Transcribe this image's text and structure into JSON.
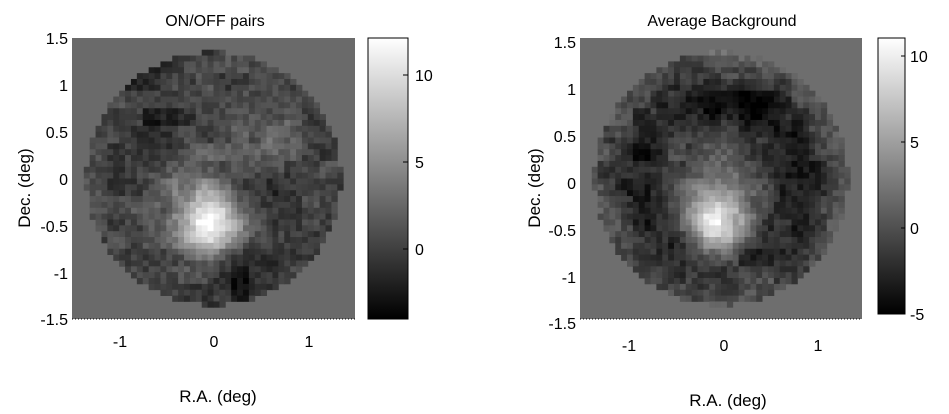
{
  "chart_data": [
    {
      "type": "heatmap",
      "title": "ON/OFF pairs",
      "xlabel": "R.A. (deg)",
      "ylabel": "Dec. (deg)",
      "xlim": [
        -1.5,
        1.5
      ],
      "ylim": [
        -1.5,
        1.5
      ],
      "xticks": [
        -1,
        0,
        1
      ],
      "yticks": [
        1.5,
        1,
        0.5,
        0,
        -0.5,
        -1,
        -1.5
      ],
      "colorbar": {
        "ticks": [
          10,
          5,
          0
        ],
        "range": [
          -4,
          12
        ],
        "colormap": "gray"
      },
      "field_radius_deg": 1.35,
      "background_level": 0.3,
      "features": [
        {
          "label": "peak",
          "x": -0.05,
          "y": -0.48,
          "value": 11.5
        },
        {
          "label": "hot",
          "x": -0.3,
          "y": 0.1,
          "value": 3.0
        },
        {
          "label": "hot",
          "x": 0.6,
          "y": 0.4,
          "value": 2.0
        },
        {
          "label": "cold",
          "x": -0.55,
          "y": 0.35,
          "value": -3.0
        },
        {
          "label": "cold",
          "x": -0.7,
          "y": 1.25,
          "value": -2.5
        },
        {
          "label": "cold",
          "x": 0.3,
          "y": -1.05,
          "value": -3.0
        },
        {
          "label": "cold",
          "x": 0.5,
          "y": -0.1,
          "value": -1.5
        }
      ]
    },
    {
      "type": "heatmap",
      "title": "Average Background",
      "xlabel": "R.A. (deg)",
      "ylabel": "Dec. (deg)",
      "xlim": [
        -1.5,
        1.5
      ],
      "ylim": [
        -1.5,
        1.5
      ],
      "xticks": [
        -1,
        0,
        1
      ],
      "yticks": [
        1.5,
        1,
        0.5,
        0,
        -0.5,
        -1,
        -1.5
      ],
      "colorbar": {
        "ticks": [
          10,
          5,
          0,
          -5
        ],
        "range": [
          -5,
          11
        ],
        "colormap": "gray"
      },
      "field_radius_deg": 1.35,
      "background_level": 0.5,
      "features": [
        {
          "label": "peak",
          "x": -0.05,
          "y": -0.48,
          "value": 10.5
        },
        {
          "label": "ring",
          "x": 0.0,
          "y": 0.0,
          "value": -4.0
        },
        {
          "label": "hot",
          "x": 0.2,
          "y": 1.35,
          "value": 2.5
        },
        {
          "label": "cold",
          "x": 0.3,
          "y": 0.75,
          "value": -2.0
        }
      ]
    }
  ]
}
